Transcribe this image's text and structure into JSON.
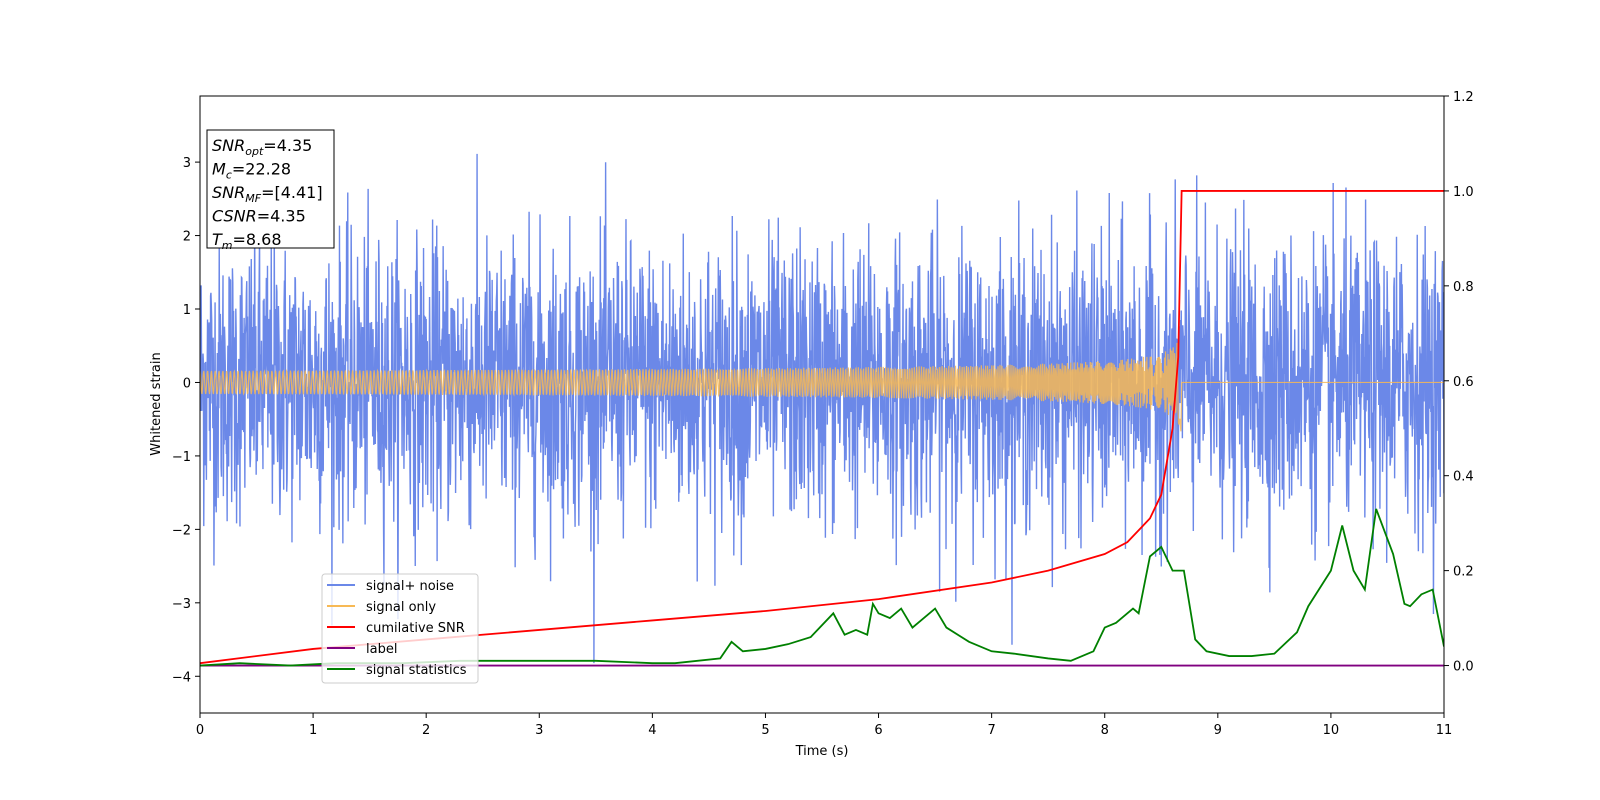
{
  "chart_data": {
    "type": "line",
    "xlabel": "Time (s)",
    "ylabel": "Whitened strain",
    "xlim": [
      0,
      11
    ],
    "ylim_left": [
      -4.5,
      3.9
    ],
    "ylim_right": [
      -0.1,
      1.2
    ],
    "x_ticks": [
      "0",
      "1",
      "2",
      "3",
      "4",
      "5",
      "6",
      "7",
      "8",
      "9",
      "10",
      "11"
    ],
    "y_ticks_left": [
      "−4",
      "−3",
      "−2",
      "−1",
      "0",
      "1",
      "2",
      "3"
    ],
    "y_ticks_right": [
      "0.0",
      "0.2",
      "0.4",
      "0.6",
      "0.8",
      "1.0",
      "1.2"
    ],
    "annotation": [
      {
        "main": "SNR",
        "sub": "opt",
        "rest": "=4.35"
      },
      {
        "main": "M",
        "sub": "c",
        "rest": "=22.28"
      },
      {
        "main": "SNR",
        "sub": "MF",
        "rest": "=[4.41]"
      },
      {
        "main": "CSNR",
        "sub": "",
        "rest": "=4.35"
      },
      {
        "main": "T",
        "sub": "m",
        "rest": "=8.68"
      }
    ],
    "legend": {
      "placement": "lower-left",
      "entries": [
        "signal+ noise",
        "signal only",
        "cumilative SNR",
        "label",
        "signal statistics"
      ]
    },
    "series": [
      {
        "name": "signal+ noise",
        "axis": "left",
        "color": "#6b88e8",
        "description_stats": {
          "approx_std": 0.95,
          "approx_min": -4.15,
          "approx_max": 3.2
        }
      },
      {
        "name": "signal only",
        "axis": "left",
        "color": "#f7b955",
        "chirp_end_time": 8.68,
        "peak_amplitude": 0.8
      },
      {
        "name": "cumilative SNR",
        "axis": "right",
        "color": "#ff0000",
        "x": [
          0,
          1,
          2,
          3,
          4,
          5,
          6,
          7,
          7.5,
          8,
          8.2,
          8.4,
          8.5,
          8.6,
          8.65,
          8.68,
          9,
          10,
          11
        ],
        "y": [
          0.005,
          0.035,
          0.055,
          0.075,
          0.095,
          0.115,
          0.14,
          0.175,
          0.2,
          0.235,
          0.26,
          0.31,
          0.36,
          0.5,
          0.65,
          1.0,
          1.0,
          1.0,
          1.0
        ]
      },
      {
        "name": "label",
        "axis": "right",
        "color": "#800080",
        "x": [
          0,
          11
        ],
        "y": [
          0,
          0
        ]
      },
      {
        "name": "signal statistics",
        "axis": "right",
        "color": "#008000",
        "x": [
          0,
          0.35,
          0.8,
          1.2,
          1.8,
          2.3,
          2.7,
          3.0,
          3.5,
          4.0,
          4.2,
          4.6,
          4.7,
          4.8,
          5.0,
          5.2,
          5.4,
          5.6,
          5.7,
          5.8,
          5.9,
          5.95,
          6.0,
          6.1,
          6.2,
          6.3,
          6.5,
          6.6,
          6.8,
          7.0,
          7.2,
          7.5,
          7.7,
          7.9,
          8.0,
          8.1,
          8.25,
          8.3,
          8.4,
          8.5,
          8.6,
          8.7,
          8.8,
          8.9,
          9.1,
          9.3,
          9.5,
          9.7,
          9.8,
          10.0,
          10.1,
          10.2,
          10.3,
          10.4,
          10.55,
          10.65,
          10.7,
          10.8,
          10.9,
          11.0
        ],
        "y": [
          0,
          0.005,
          0,
          0.005,
          0.005,
          0.01,
          0.01,
          0.01,
          0.01,
          0.005,
          0.005,
          0.015,
          0.05,
          0.03,
          0.035,
          0.045,
          0.06,
          0.11,
          0.065,
          0.075,
          0.065,
          0.13,
          0.11,
          0.1,
          0.12,
          0.08,
          0.12,
          0.08,
          0.05,
          0.03,
          0.025,
          0.015,
          0.01,
          0.03,
          0.08,
          0.09,
          0.12,
          0.11,
          0.23,
          0.25,
          0.2,
          0.2,
          0.055,
          0.03,
          0.02,
          0.02,
          0.025,
          0.07,
          0.125,
          0.2,
          0.295,
          0.2,
          0.16,
          0.33,
          0.235,
          0.13,
          0.125,
          0.15,
          0.16,
          0.04
        ]
      }
    ]
  }
}
